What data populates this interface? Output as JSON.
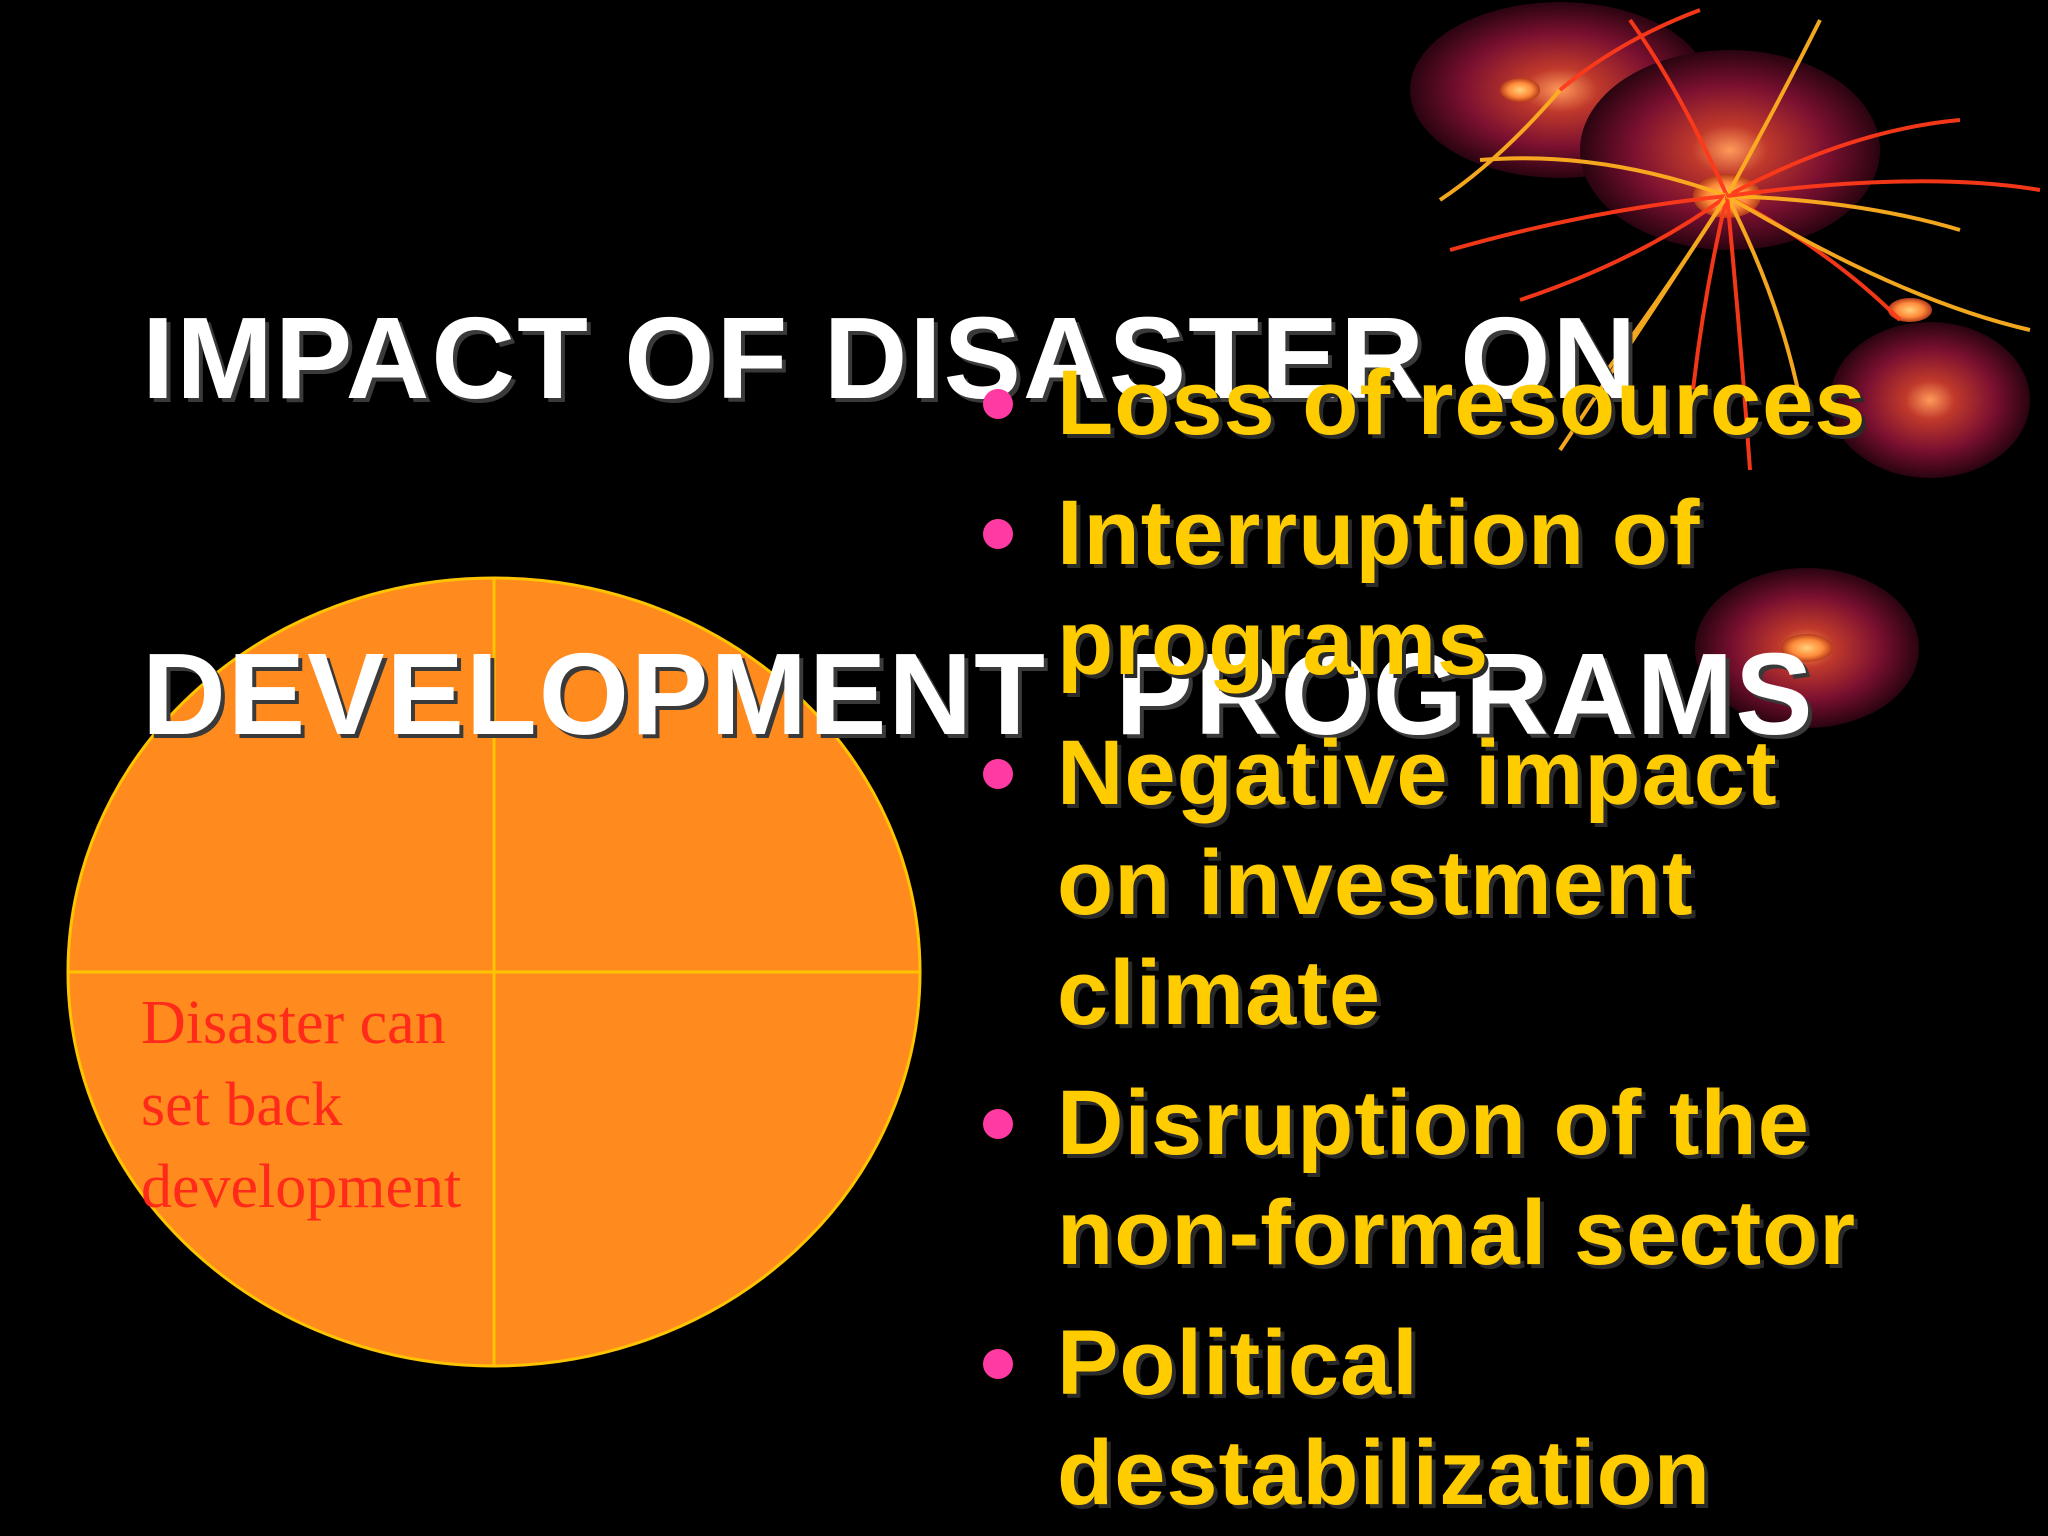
{
  "slide": {
    "title_lines": [
      "IMPACT OF DISASTER ON",
      "DEVELOPMENT  PROGRAMS"
    ],
    "bullets": [
      {
        "lines": [
          "Loss of resources"
        ]
      },
      {
        "lines": [
          "Interruption of",
          "programs"
        ]
      },
      {
        "lines": [
          "Negative impact",
          "on investment",
          "climate"
        ]
      },
      {
        "lines": [
          "Disruption of the",
          "non-formal sector"
        ]
      },
      {
        "lines": [
          "Political",
          "destabilization"
        ]
      }
    ]
  },
  "diagram": {
    "label_lines": [
      "Disaster can",
      "set back",
      "development"
    ]
  },
  "colors": {
    "background": "#000000",
    "title": "#ffffff",
    "bullet_text": "#ffcc00",
    "bullet_dot": "#ff3aa3",
    "circle_fill": "#ff8a1e",
    "circle_stroke": "#ffc400",
    "label_text": "#ff2a1a"
  }
}
